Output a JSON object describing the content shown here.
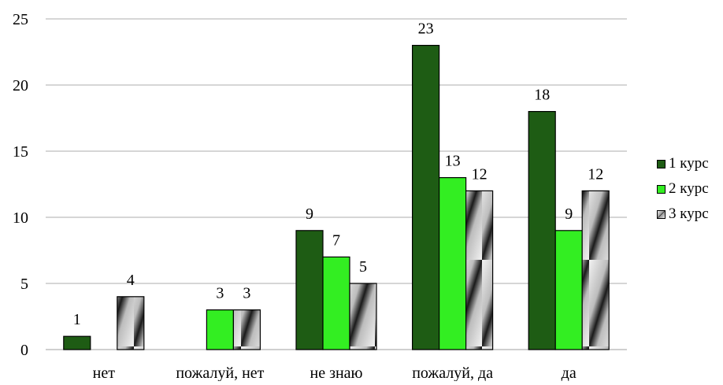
{
  "chart_data": {
    "type": "bar",
    "categories": [
      "нет",
      "пожалуй, нет",
      "не знаю",
      "пожалуй, да",
      "да"
    ],
    "series": [
      {
        "name": "1 курс",
        "values": [
          1,
          0,
          9,
          23,
          18
        ],
        "labels": [
          "1",
          "",
          "9",
          "23",
          "18"
        ],
        "color": "#1e5c14"
      },
      {
        "name": "2 курс",
        "values": [
          0,
          3,
          7,
          13,
          9
        ],
        "labels": [
          "",
          "3",
          "7",
          "13",
          "9"
        ],
        "color": "#33ee22"
      },
      {
        "name": "3 курс",
        "values": [
          4,
          3,
          5,
          12,
          12
        ],
        "labels": [
          "4",
          "3",
          "5",
          "12",
          "12"
        ],
        "color": "striped-gray"
      }
    ],
    "ylim": [
      0,
      25
    ],
    "yticks": [
      "0",
      "5",
      "10",
      "15",
      "20",
      "25"
    ],
    "grid": true,
    "legend_position": "right"
  }
}
